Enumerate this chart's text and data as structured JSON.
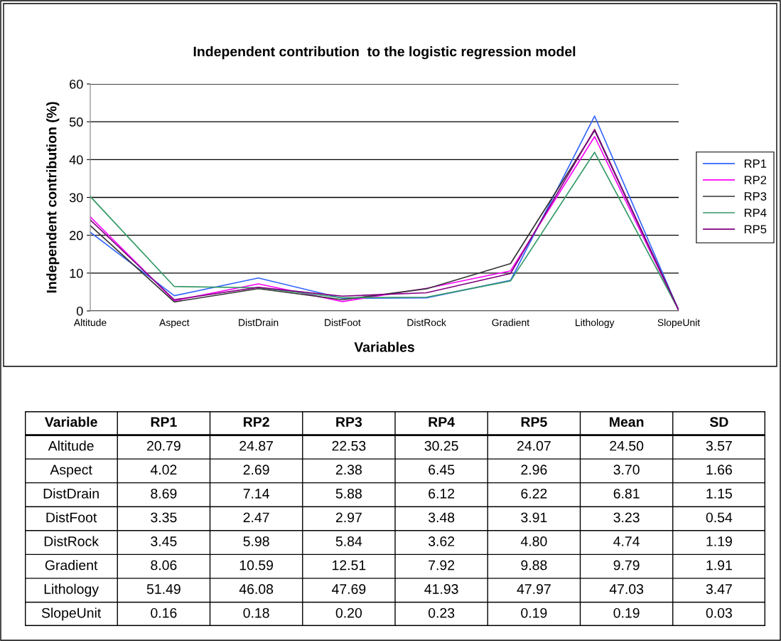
{
  "chart_data": [
    {
      "type": "line",
      "title": "Independent contribution  to the logistic regression model",
      "xlabel": "Variables",
      "ylabel": "Independent contribution (%)",
      "categories": [
        "Altitude",
        "Aspect",
        "DistDrain",
        "DistFoot",
        "DistRock",
        "Gradient",
        "Lithology",
        "SlopeUnit"
      ],
      "series": [
        {
          "name": "RP1",
          "color": "#3366ff",
          "values": [
            20.79,
            4.02,
            8.69,
            3.35,
            3.45,
            8.06,
            51.49,
            0.16
          ]
        },
        {
          "name": "RP2",
          "color": "#ff00ff",
          "values": [
            24.87,
            2.69,
            7.14,
            2.47,
            5.98,
            10.59,
            46.08,
            0.18
          ]
        },
        {
          "name": "RP3",
          "color": "#333333",
          "values": [
            22.53,
            2.38,
            5.88,
            2.97,
            5.84,
            12.51,
            47.69,
            0.2
          ]
        },
        {
          "name": "RP4",
          "color": "#339966",
          "values": [
            30.25,
            6.45,
            6.12,
            3.48,
            3.62,
            7.92,
            41.93,
            0.23
          ]
        },
        {
          "name": "RP5",
          "color": "#800080",
          "values": [
            24.07,
            2.96,
            6.22,
            3.91,
            4.8,
            9.88,
            47.97,
            0.19
          ]
        }
      ],
      "ylim": [
        0,
        60
      ],
      "yticks": [
        0,
        10,
        20,
        30,
        40,
        50,
        60
      ],
      "grid": "y",
      "legend": "right",
      "marker": "none",
      "line_style": "solid"
    },
    {
      "type": "other",
      "ylabel": "Variable",
      "categories": [
        "Altitude",
        "Aspect",
        "DistDrain",
        "DistFoot",
        "DistRock",
        "Gradient",
        "Lithology",
        "SlopeUnit"
      ],
      "series": [
        {
          "name": "RP1",
          "values": [
            20.79,
            4.02,
            8.69,
            3.35,
            3.45,
            8.06,
            51.49,
            0.16
          ],
          "value_labels": [
            "20.79",
            "4.02",
            "8.69",
            "3.35",
            "3.45",
            "8.06",
            "51.49",
            "0.16"
          ]
        },
        {
          "name": "RP2",
          "values": [
            24.87,
            2.69,
            7.14,
            2.47,
            5.98,
            10.59,
            46.08,
            0.18
          ],
          "value_labels": [
            "24.87",
            "2.69",
            "7.14",
            "2.47",
            "5.98",
            "10.59",
            "46.08",
            "0.18"
          ]
        },
        {
          "name": "RP3",
          "values": [
            22.53,
            2.38,
            5.88,
            2.97,
            5.84,
            12.51,
            47.69,
            0.2
          ],
          "value_labels": [
            "22.53",
            "2.38",
            "5.88",
            "2.97",
            "5.84",
            "12.51",
            "47.69",
            "0.20"
          ]
        },
        {
          "name": "RP4",
          "values": [
            30.25,
            6.45,
            6.12,
            3.48,
            3.62,
            7.92,
            41.93,
            0.23
          ],
          "value_labels": [
            "30.25",
            "6.45",
            "6.12",
            "3.48",
            "3.62",
            "7.92",
            "41.93",
            "0.23"
          ]
        },
        {
          "name": "RP5",
          "values": [
            24.07,
            2.96,
            6.22,
            3.91,
            4.8,
            9.88,
            47.97,
            0.19
          ],
          "value_labels": [
            "24.07",
            "2.96",
            "6.22",
            "3.91",
            "4.80",
            "9.88",
            "47.97",
            "0.19"
          ]
        },
        {
          "name": "Mean",
          "values": [
            24.5,
            3.7,
            6.81,
            3.23,
            4.74,
            9.79,
            47.03,
            0.19
          ],
          "value_labels": [
            "24.50",
            "3.70",
            "6.81",
            "3.23",
            "4.74",
            "9.79",
            "47.03",
            "0.19"
          ]
        },
        {
          "name": "SD",
          "values": [
            3.57,
            1.66,
            1.15,
            0.54,
            1.19,
            1.91,
            3.47,
            0.03
          ],
          "value_labels": [
            "3.57",
            "1.66",
            "1.15",
            "0.54",
            "1.19",
            "1.91",
            "3.47",
            "0.03"
          ]
        }
      ]
    }
  ]
}
